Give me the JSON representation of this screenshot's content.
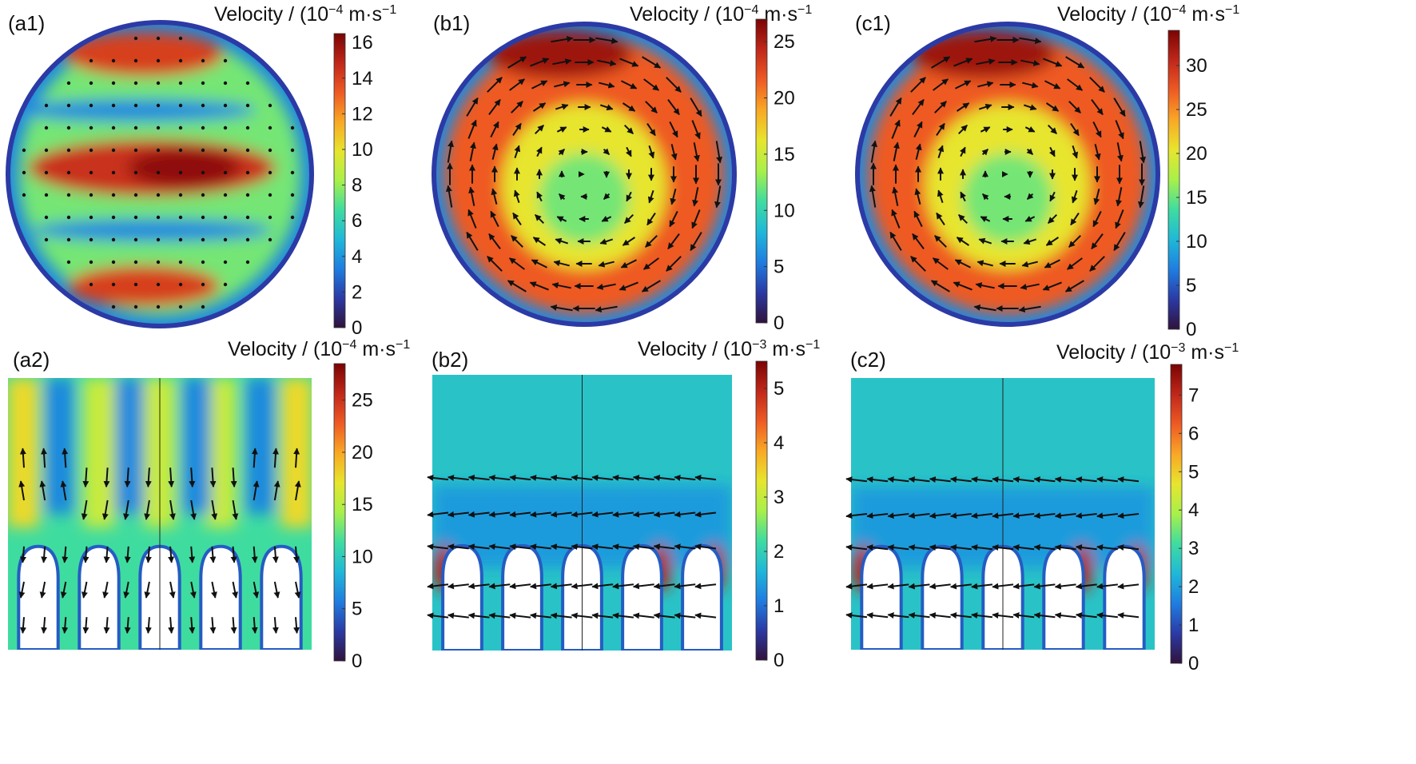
{
  "colormap": [
    "#30123b",
    "#2b3aa5",
    "#1f7de0",
    "#1fb8d8",
    "#3fdca0",
    "#a8f04a",
    "#e7e52d",
    "#f9a825",
    "#ee5a24",
    "#c0271a",
    "#7a0403"
  ],
  "panels": [
    {
      "id": "a1",
      "label": "(a1)",
      "kind": "disk",
      "pattern": "bands",
      "cbar": {
        "title": "Velocity / (10",
        "exp": "−4",
        "unit": " m·s",
        "uexp": "−1",
        "ticks": [
          "0",
          "2",
          "4",
          "6",
          "8",
          "10",
          "12",
          "14",
          "16"
        ],
        "max": 16.5
      }
    },
    {
      "id": "b1",
      "label": "(b1)",
      "kind": "disk",
      "pattern": "vortex",
      "cbar": {
        "title": "Velocity / (10",
        "exp": "−4",
        "unit": " m·s",
        "uexp": "−1",
        "ticks": [
          "0",
          "5",
          "10",
          "15",
          "20",
          "25"
        ],
        "max": 27
      }
    },
    {
      "id": "c1",
      "label": "(c1)",
      "kind": "disk",
      "pattern": "vortex",
      "cbar": {
        "title": "Velocity / (10",
        "exp": "−4",
        "unit": " m·s",
        "uexp": "−1",
        "ticks": [
          "0",
          "5",
          "10",
          "15",
          "20",
          "25",
          "30"
        ],
        "max": 34
      }
    },
    {
      "id": "a2",
      "label": "(a2)",
      "kind": "rect",
      "pattern": "columns",
      "cbar": {
        "title": "Velocity / (10",
        "exp": "−4",
        "unit": " m·s",
        "uexp": "−1",
        "ticks": [
          "0",
          "5",
          "10",
          "15",
          "20",
          "25"
        ],
        "max": 28.5
      }
    },
    {
      "id": "b2",
      "label": "(b2)",
      "kind": "rect",
      "pattern": "flow",
      "cbar": {
        "title": "Velocity / (10",
        "exp": "−3",
        "unit": " m·s",
        "uexp": "−1",
        "ticks": [
          "0",
          "1",
          "2",
          "3",
          "4",
          "5"
        ],
        "max": 5.5
      }
    },
    {
      "id": "c2",
      "label": "(c2)",
      "kind": "rect",
      "pattern": "flow",
      "cbar": {
        "title": "Velocity / (10",
        "exp": "−3",
        "unit": " m·s",
        "uexp": "−1",
        "ticks": [
          "0",
          "1",
          "2",
          "3",
          "4",
          "5",
          "6",
          "7"
        ],
        "max": 7.8
      }
    }
  ]
}
